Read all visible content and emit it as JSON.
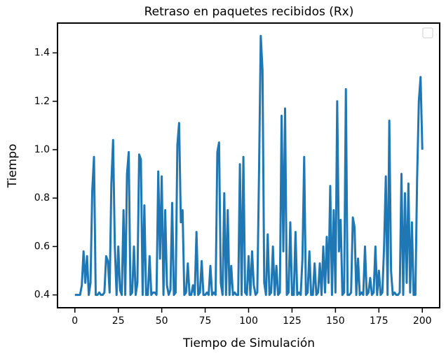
{
  "chart_data": {
    "type": "line",
    "title": "Retraso en paquetes recibidos (Rx)",
    "x_label": "Tiempo de Simulación",
    "y_label": "Tiempo",
    "color": "#1f77b4",
    "x": [
      0,
      1,
      2,
      3,
      4,
      5,
      6,
      7,
      8,
      9,
      10,
      11,
      12,
      13,
      14,
      15,
      16,
      17,
      18,
      19,
      20,
      21,
      22,
      23,
      24,
      25,
      26,
      27,
      28,
      29,
      30,
      31,
      32,
      33,
      34,
      35,
      36,
      37,
      38,
      39,
      40,
      41,
      42,
      43,
      44,
      45,
      46,
      47,
      48,
      49,
      50,
      51,
      52,
      53,
      54,
      55,
      56,
      57,
      58,
      59,
      60,
      61,
      62,
      63,
      64,
      65,
      66,
      67,
      68,
      69,
      70,
      71,
      72,
      73,
      74,
      75,
      76,
      77,
      78,
      79,
      80,
      81,
      82,
      83,
      84,
      85,
      86,
      87,
      88,
      89,
      90,
      91,
      92,
      93,
      94,
      95,
      96,
      97,
      98,
      99,
      100,
      101,
      102,
      103,
      104,
      105,
      106,
      107,
      108,
      109,
      110,
      111,
      112,
      113,
      114,
      115,
      116,
      117,
      118,
      119,
      120,
      121,
      122,
      123,
      124,
      125,
      126,
      127,
      128,
      129,
      130,
      131,
      132,
      133,
      134,
      135,
      136,
      137,
      138,
      139,
      140,
      141,
      142,
      143,
      144,
      145,
      146,
      147,
      148,
      149,
      150,
      151,
      152,
      153,
      154,
      155,
      156,
      157,
      158,
      159,
      160,
      161,
      162,
      163,
      164,
      165,
      166,
      167,
      168,
      169,
      170,
      171,
      172,
      173,
      174,
      175,
      176,
      177,
      178,
      179,
      180,
      181,
      182,
      183,
      184,
      185,
      186,
      187,
      188,
      189,
      190,
      191,
      192,
      193,
      194,
      195,
      196,
      197,
      198,
      199,
      200
    ],
    "values": [
      0.4,
      0.4,
      0.4,
      0.4,
      0.44,
      0.58,
      0.45,
      0.56,
      0.4,
      0.45,
      0.83,
      0.97,
      0.4,
      0.4,
      0.41,
      0.4,
      0.4,
      0.41,
      0.56,
      0.54,
      0.41,
      0.86,
      1.04,
      0.6,
      0.4,
      0.6,
      0.42,
      0.4,
      0.75,
      0.4,
      0.9,
      0.99,
      0.4,
      0.41,
      0.6,
      0.4,
      0.45,
      0.98,
      0.96,
      0.4,
      0.77,
      0.4,
      0.4,
      0.56,
      0.4,
      0.41,
      0.41,
      0.4,
      0.91,
      0.55,
      0.89,
      0.4,
      0.75,
      0.44,
      0.4,
      0.42,
      0.78,
      0.4,
      0.41,
      1.02,
      1.11,
      0.7,
      0.75,
      0.4,
      0.41,
      0.53,
      0.4,
      0.4,
      0.44,
      0.4,
      0.66,
      0.4,
      0.41,
      0.54,
      0.4,
      0.4,
      0.41,
      0.4,
      0.52,
      0.4,
      0.41,
      0.4,
      0.99,
      1.03,
      0.45,
      0.4,
      0.82,
      0.4,
      0.75,
      0.4,
      0.52,
      0.4,
      0.41,
      0.4,
      0.4,
      0.94,
      0.4,
      0.97,
      0.41,
      0.4,
      0.56,
      0.4,
      0.58,
      0.44,
      0.4,
      0.41,
      0.9,
      1.47,
      1.33,
      0.45,
      0.4,
      0.65,
      0.4,
      0.41,
      0.6,
      0.4,
      0.52,
      0.4,
      0.41,
      1.14,
      0.58,
      1.17,
      0.4,
      0.41,
      0.7,
      0.4,
      0.4,
      0.66,
      0.4,
      0.41,
      0.4,
      0.55,
      0.97,
      0.4,
      0.41,
      0.58,
      0.4,
      0.4,
      0.53,
      0.4,
      0.41,
      0.53,
      0.4,
      0.6,
      0.41,
      0.64,
      0.45,
      0.85,
      0.4,
      0.75,
      0.41,
      1.2,
      0.58,
      0.71,
      0.4,
      0.41,
      1.25,
      0.4,
      0.4,
      0.41,
      0.72,
      0.68,
      0.4,
      0.55,
      0.4,
      0.41,
      0.4,
      0.6,
      0.4,
      0.41,
      0.47,
      0.4,
      0.41,
      0.6,
      0.4,
      0.5,
      0.4,
      0.41,
      0.6,
      0.89,
      0.4,
      1.12,
      0.5,
      0.4,
      0.41,
      0.4,
      0.4,
      0.41,
      0.9,
      0.4,
      0.82,
      0.45,
      0.86,
      0.41,
      0.7,
      0.4,
      0.4,
      0.88,
      1.2,
      1.3,
      1.0
    ],
    "xlim": [
      -10,
      210
    ],
    "ylim": [
      0.347,
      1.523
    ],
    "xticks": [
      0,
      25,
      50,
      75,
      100,
      125,
      150,
      175,
      200
    ],
    "yticks": [
      0.4,
      0.6,
      0.8,
      {
        "value": 1,
        "label": "1.0"
      },
      1.2,
      1.4
    ]
  }
}
